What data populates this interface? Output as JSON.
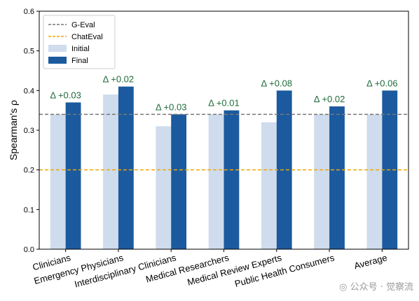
{
  "chart_data": {
    "type": "bar",
    "title": "",
    "xlabel": "",
    "ylabel": "Spearman's ρ",
    "ylim": [
      0,
      0.6
    ],
    "yticks": [
      "0.0",
      "0.1",
      "0.2",
      "0.3",
      "0.4",
      "0.5",
      "0.6"
    ],
    "grid": false,
    "legend_position": "top-left",
    "categories": [
      "Clinicians",
      "Emergency Physicians",
      "Interdisciplinary Clinicians",
      "Medical Researchers",
      "Medical Review Experts",
      "Public Health Consumers",
      "Average"
    ],
    "series": [
      {
        "name": "Initial",
        "color": "#cfdced",
        "values": [
          0.34,
          0.39,
          0.31,
          0.34,
          0.32,
          0.34,
          0.34
        ]
      },
      {
        "name": "Final",
        "color": "#1b5a9e",
        "values": [
          0.37,
          0.41,
          0.34,
          0.35,
          0.4,
          0.36,
          0.4
        ]
      }
    ],
    "annotations": [
      "Δ +0.03",
      "Δ +0.02",
      "Δ +0.03",
      "Δ +0.01",
      "Δ +0.08",
      "Δ +0.02",
      "Δ +0.06"
    ],
    "annotation_color": "#1e6b3a",
    "reference_lines": [
      {
        "name": "G-Eval",
        "value": 0.34,
        "color": "#777777"
      },
      {
        "name": "ChatEval",
        "value": 0.2,
        "color": "#f0a500"
      }
    ]
  },
  "watermark": "公众号 · 觉察流"
}
